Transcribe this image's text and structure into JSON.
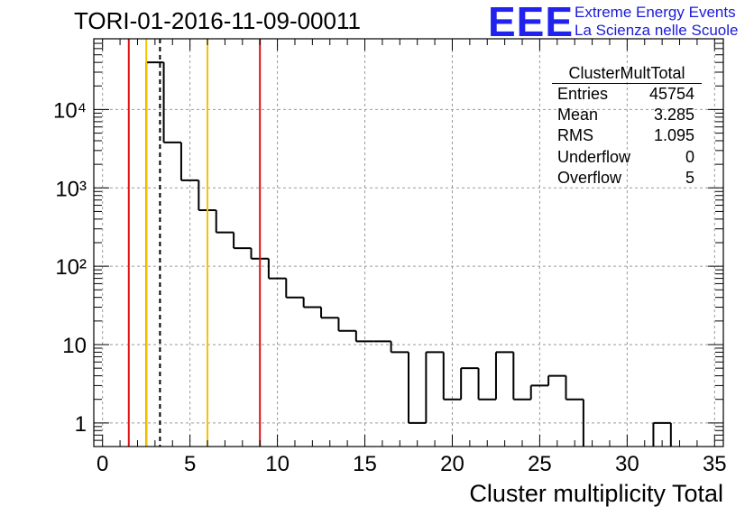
{
  "title": "TORI-01-2016-11-09-00011",
  "logo": {
    "text": "EEE",
    "line1": "Extreme Energy Events",
    "line2": "La Scienza nelle Scuole",
    "color": "#2222ee"
  },
  "stats": {
    "name": "ClusterMultTotal",
    "rows": [
      {
        "label": "Entries",
        "value": "45754"
      },
      {
        "label": "Mean",
        "value": "3.285"
      },
      {
        "label": "RMS",
        "value": "1.095"
      },
      {
        "label": "Underflow",
        "value": "0"
      },
      {
        "label": "Overflow",
        "value": "5"
      }
    ]
  },
  "chart_data": {
    "type": "bar",
    "histogram": true,
    "xlabel": "Cluster multiplicity Total",
    "ylabel": "",
    "xlim": [
      -0.5,
      35.5
    ],
    "ylim": [
      0.5,
      80000
    ],
    "yscale": "log",
    "grid": true,
    "bin_width": 1,
    "bin_centers": [
      0,
      1,
      2,
      3,
      4,
      5,
      6,
      7,
      8,
      9,
      10,
      11,
      12,
      13,
      14,
      15,
      16,
      17,
      18,
      19,
      20,
      21,
      22,
      23,
      24,
      25,
      26,
      27,
      28,
      29,
      30,
      31,
      32,
      33,
      34,
      35
    ],
    "values": [
      0,
      0,
      0,
      40000,
      3800,
      1250,
      520,
      270,
      170,
      125,
      70,
      40,
      30,
      22,
      15,
      11,
      11,
      8,
      1,
      8,
      2,
      5,
      2,
      8,
      2,
      3,
      4,
      2,
      0,
      0,
      0,
      0,
      1,
      0,
      0,
      0
    ],
    "x_ticks": [
      0,
      5,
      10,
      15,
      20,
      25,
      30,
      35
    ],
    "x_tick_labels": [
      "0",
      "5",
      "10",
      "15",
      "20",
      "25",
      "30",
      "35"
    ],
    "y_ticks": [
      1,
      10,
      100,
      1000,
      10000
    ],
    "y_tick_labels": [
      "1",
      "10",
      "10²",
      "10³",
      "10⁴"
    ],
    "vertical_lines": [
      {
        "x": 1.5,
        "color": "#dd1111",
        "style": "solid"
      },
      {
        "x": 2.5,
        "color": "#f5c400",
        "style": "solid"
      },
      {
        "x": 3.285,
        "color": "#000000",
        "style": "dashed"
      },
      {
        "x": 6.0,
        "color": "#f5c400",
        "style": "solid"
      },
      {
        "x": 9.0,
        "color": "#dd1111",
        "style": "solid"
      }
    ]
  }
}
